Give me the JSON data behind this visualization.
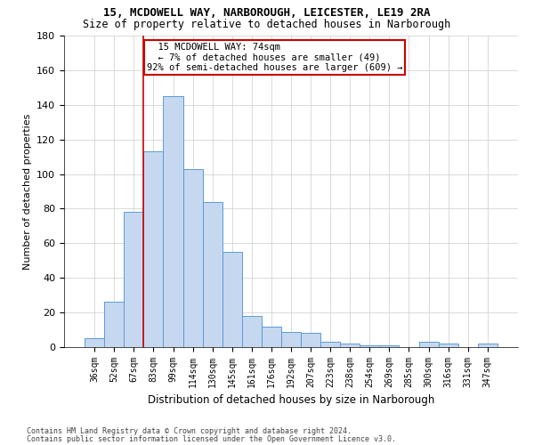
{
  "title1": "15, MCDOWELL WAY, NARBOROUGH, LEICESTER, LE19 2RA",
  "title2": "Size of property relative to detached houses in Narborough",
  "xlabel": "Distribution of detached houses by size in Narborough",
  "ylabel": "Number of detached properties",
  "categories": [
    "36sqm",
    "52sqm",
    "67sqm",
    "83sqm",
    "99sqm",
    "114sqm",
    "130sqm",
    "145sqm",
    "161sqm",
    "176sqm",
    "192sqm",
    "207sqm",
    "223sqm",
    "238sqm",
    "254sqm",
    "269sqm",
    "285sqm",
    "300sqm",
    "316sqm",
    "331sqm",
    "347sqm"
  ],
  "values": [
    5,
    26,
    78,
    113,
    145,
    103,
    84,
    55,
    18,
    12,
    9,
    8,
    3,
    2,
    1,
    1,
    0,
    3,
    2,
    0,
    2
  ],
  "bar_color": "#c5d8f0",
  "bar_edge_color": "#5b9bd5",
  "vline_index": 2,
  "annotation_line1": "  15 MCDOWELL WAY: 74sqm",
  "annotation_line2": "  ← 7% of detached houses are smaller (49)",
  "annotation_line3": "92% of semi-detached houses are larger (609) →",
  "vline_color": "#cc0000",
  "ylim": [
    0,
    180
  ],
  "yticks": [
    0,
    20,
    40,
    60,
    80,
    100,
    120,
    140,
    160,
    180
  ],
  "footnote1": "Contains HM Land Registry data © Crown copyright and database right 2024.",
  "footnote2": "Contains public sector information licensed under the Open Government Licence v3.0.",
  "bg_color": "#ffffff",
  "grid_color": "#cccccc",
  "title1_fontsize": 9,
  "title2_fontsize": 8.5,
  "ylabel_fontsize": 8,
  "xlabel_fontsize": 8.5,
  "tick_fontsize": 7,
  "annot_fontsize": 7.5,
  "footnote_fontsize": 6
}
